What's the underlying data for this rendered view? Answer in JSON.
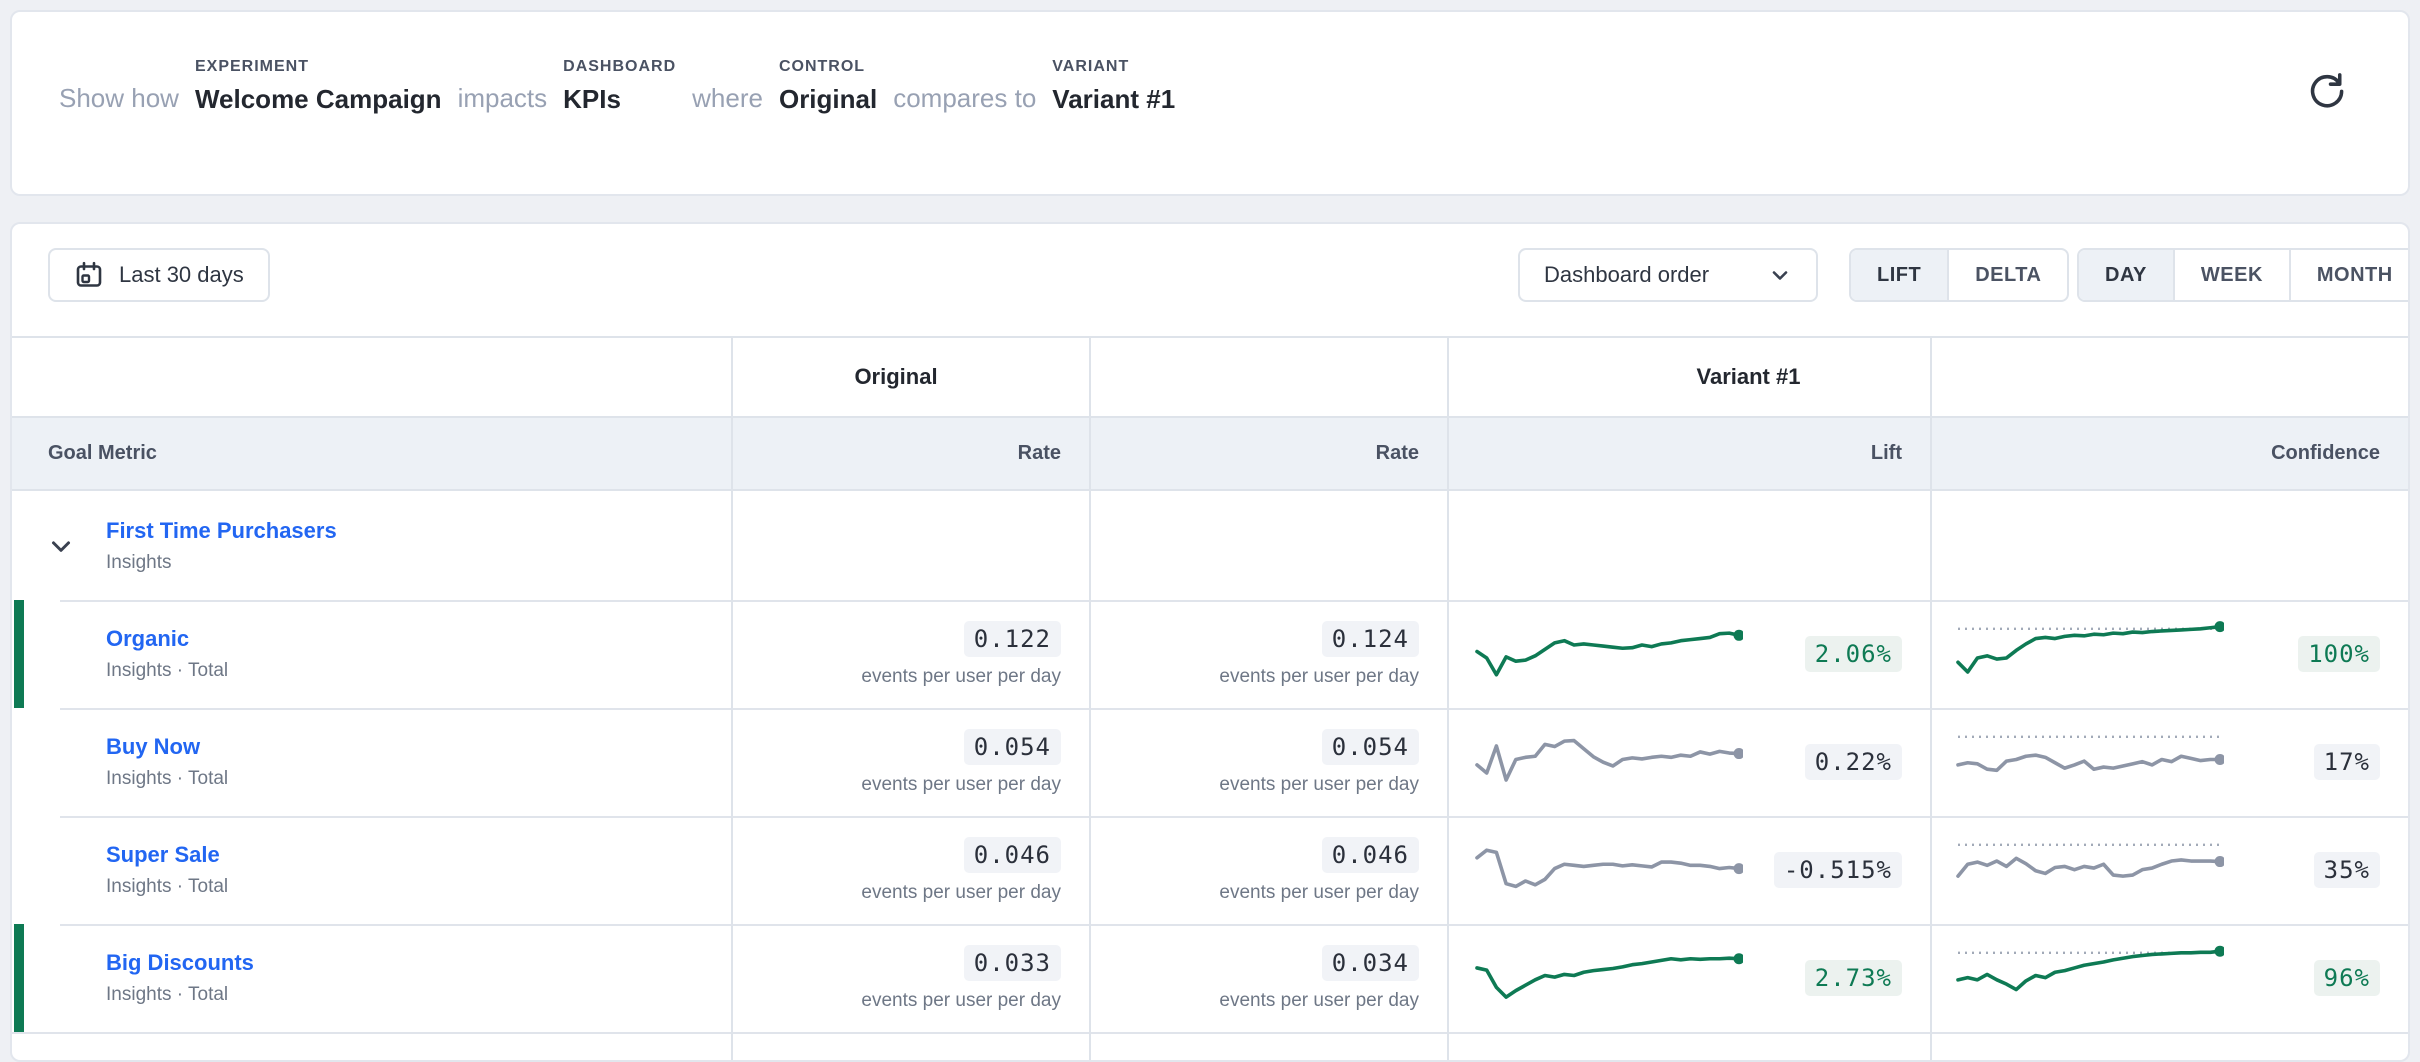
{
  "header": {
    "parts": {
      "p0": "Show how",
      "experiment": {
        "label": "EXPERIMENT",
        "value": "Welcome Campaign"
      },
      "p1": "impacts",
      "dashboard": {
        "label": "DASHBOARD",
        "value": "KPIs"
      },
      "p2": "where",
      "control": {
        "label": "CONTROL",
        "value": "Original"
      },
      "p3": "compares to",
      "variant": {
        "label": "VARIANT",
        "value": "Variant #1"
      }
    }
  },
  "toolbar": {
    "date_range": "Last 30 days",
    "order": "Dashboard order",
    "mode": {
      "options": [
        "LIFT",
        "DELTA"
      ],
      "selected": 0
    },
    "granularity": {
      "options": [
        "DAY",
        "WEEK",
        "MONTH"
      ],
      "selected": 0
    }
  },
  "table": {
    "col_headers": {
      "control": "Original",
      "variant": "Variant #1"
    },
    "sub_headers": {
      "goal": "Goal Metric",
      "rate": "Rate",
      "lift": "Lift",
      "confidence": "Confidence"
    },
    "group": {
      "name": "First Time Purchasers",
      "source": "Insights"
    },
    "rate_unit": "events per user per day",
    "conf_threshold": 8,
    "rows": [
      {
        "name": "Organic",
        "source": "Insights · Total",
        "original_rate": "0.122",
        "variant_rate": "0.124",
        "lift": "2.06%",
        "confidence": "100%",
        "significant": true,
        "lift_spark": [
          50,
          62,
          93,
          60,
          68,
          66,
          58,
          46,
          34,
          30,
          38,
          36,
          38,
          40,
          42,
          44,
          43,
          38,
          41,
          36,
          34,
          30,
          28,
          26,
          24,
          17,
          16,
          20
        ],
        "conf_spark": [
          70,
          88,
          62,
          58,
          64,
          62,
          48,
          36,
          26,
          24,
          26,
          22,
          20,
          21,
          18,
          19,
          16,
          17,
          14,
          15,
          13,
          12,
          11,
          10,
          9,
          8,
          6,
          4
        ]
      },
      {
        "name": "Buy Now",
        "source": "Insights · Total",
        "original_rate": "0.054",
        "variant_rate": "0.054",
        "lift": "0.22%",
        "confidence": "17%",
        "significant": false,
        "lift_spark": [
          60,
          75,
          25,
          88,
          50,
          46,
          44,
          22,
          26,
          16,
          15,
          30,
          45,
          55,
          62,
          50,
          47,
          49,
          46,
          44,
          46,
          42,
          44,
          36,
          40,
          35,
          38,
          39
        ],
        "conf_spark": [
          60,
          56,
          58,
          68,
          70,
          53,
          50,
          44,
          42,
          46,
          56,
          66,
          60,
          53,
          68,
          64,
          66,
          62,
          58,
          54,
          60,
          50,
          54,
          44,
          48,
          52,
          50,
          50
        ]
      },
      {
        "name": "Super Sale",
        "source": "Insights · Total",
        "original_rate": "0.046",
        "variant_rate": "0.046",
        "lift": "-0.515%",
        "confidence": "35%",
        "significant": false,
        "lift_spark": [
          32,
          18,
          22,
          80,
          85,
          75,
          82,
          72,
          52,
          44,
          46,
          48,
          46,
          44,
          44,
          47,
          45,
          47,
          49,
          40,
          40,
          42,
          46,
          46,
          48,
          52,
          50,
          52
        ],
        "conf_spark": [
          66,
          44,
          40,
          46,
          38,
          48,
          33,
          43,
          56,
          61,
          50,
          48,
          54,
          48,
          51,
          44,
          64,
          66,
          64,
          54,
          51,
          44,
          38,
          36,
          38,
          38,
          38,
          39
        ]
      },
      {
        "name": "Big Discounts",
        "source": "Insights · Total",
        "original_rate": "0.033",
        "variant_rate": "0.034",
        "lift": "2.73%",
        "confidence": "96%",
        "significant": true,
        "lift_spark": [
          36,
          40,
          72,
          90,
          78,
          68,
          58,
          50,
          53,
          48,
          50,
          44,
          41,
          39,
          37,
          34,
          30,
          28,
          25,
          22,
          19,
          21,
          19,
          20,
          19,
          19,
          18,
          19
        ],
        "conf_spark": [
          58,
          54,
          58,
          48,
          58,
          66,
          76,
          60,
          50,
          54,
          44,
          41,
          36,
          31,
          28,
          25,
          21,
          18,
          15,
          13,
          11,
          10,
          9,
          8,
          8,
          7,
          7,
          5
        ]
      }
    ]
  },
  "colors": {
    "green": "#0e7a54",
    "gray_line": "#8d95a6",
    "threshold": "#a2aab8",
    "link_blue": "#2266f2"
  }
}
